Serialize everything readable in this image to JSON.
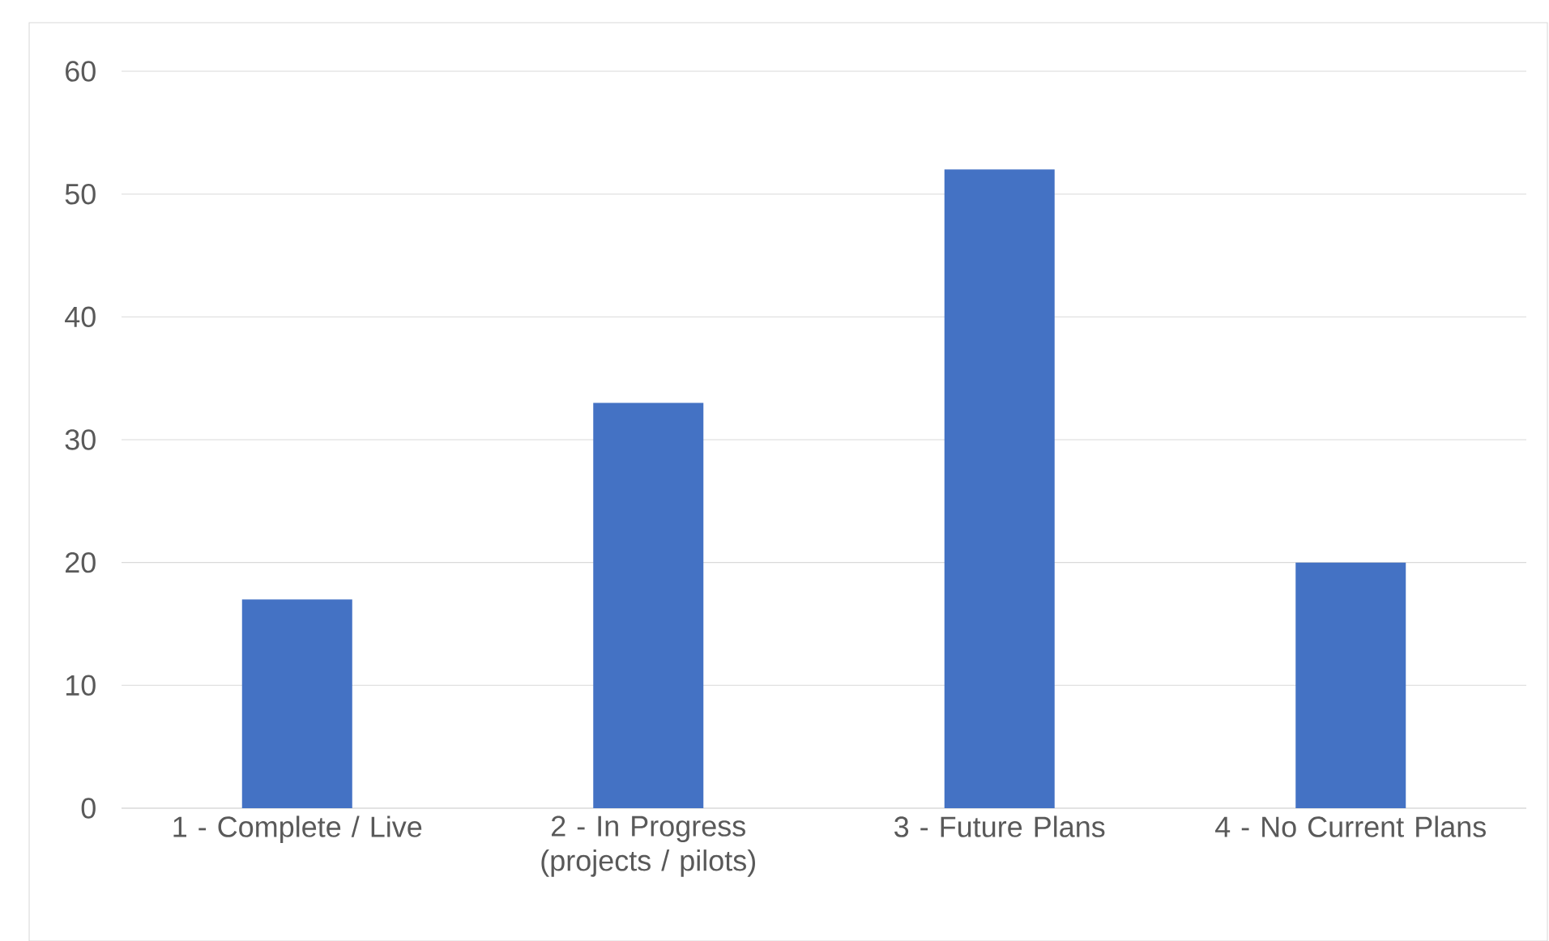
{
  "chart_data": {
    "type": "bar",
    "categories": [
      "1 - Complete / Live",
      "2 - In Progress (projects / pilots)",
      "3 - Future Plans",
      "4 - No Current Plans"
    ],
    "values": [
      17,
      33,
      52,
      20
    ],
    "color": "#4472c4",
    "ylim": [
      0,
      60
    ],
    "yticks": [
      0,
      10,
      20,
      30,
      40,
      50,
      60
    ],
    "grid": "y"
  }
}
